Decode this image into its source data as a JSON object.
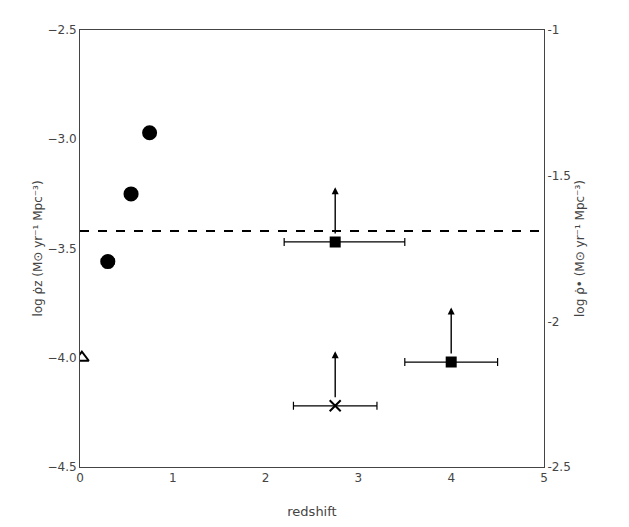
{
  "chart_data": {
    "type": "scatter",
    "xlabel": "redshift",
    "ylabel": "log ρ̇z (M⊙ yr⁻¹ Mpc⁻³)",
    "y2label": "log ρ̇• (M⊙ yr⁻¹ Mpc⁻³)",
    "xlim": [
      0,
      5
    ],
    "xticks": [
      0,
      1,
      2,
      3,
      4,
      5
    ],
    "ylim": [
      -4.5,
      -2.5
    ],
    "yticks": [
      {
        "value": -4.5,
        "label": "−4.5"
      },
      {
        "value": -4.0,
        "label": "−4.0"
      },
      {
        "value": -3.5,
        "label": "−3.5"
      },
      {
        "value": -3.0,
        "label": "−3.0"
      },
      {
        "value": -2.5,
        "label": "−2.5"
      }
    ],
    "y2lim": [
      -2.5,
      -1.0
    ],
    "y2ticks": [
      -2.5,
      -2,
      -1.5,
      -1
    ],
    "grid": false,
    "hlines": [
      {
        "y": -3.42,
        "line_style": "dashed",
        "color": "black"
      }
    ],
    "series": [
      {
        "marker": "circle",
        "color": "black",
        "x": [
          0.3,
          0.55,
          0.75
        ],
        "values": [
          -3.56,
          -3.25,
          -2.97
        ],
        "xerr": [
          0.07,
          0.07,
          0.05
        ]
      },
      {
        "marker": "triangle_open",
        "color": "black",
        "x": [
          0.02
        ],
        "values": [
          -4.0
        ]
      },
      {
        "marker": "square",
        "color": "black",
        "x": [
          2.75,
          4.0
        ],
        "values": [
          -3.47,
          -4.02
        ],
        "xerr_lo": [
          0.55,
          0.5
        ],
        "xerr_hi": [
          0.75,
          0.5
        ],
        "arrow_length": [
          0.25,
          0.25
        ]
      },
      {
        "marker": "x",
        "color": "black",
        "x": [
          2.75
        ],
        "values": [
          -4.22
        ],
        "xerr_lo": [
          0.45
        ],
        "xerr_hi": [
          0.45
        ],
        "arrow_length": [
          0.25
        ]
      }
    ]
  }
}
